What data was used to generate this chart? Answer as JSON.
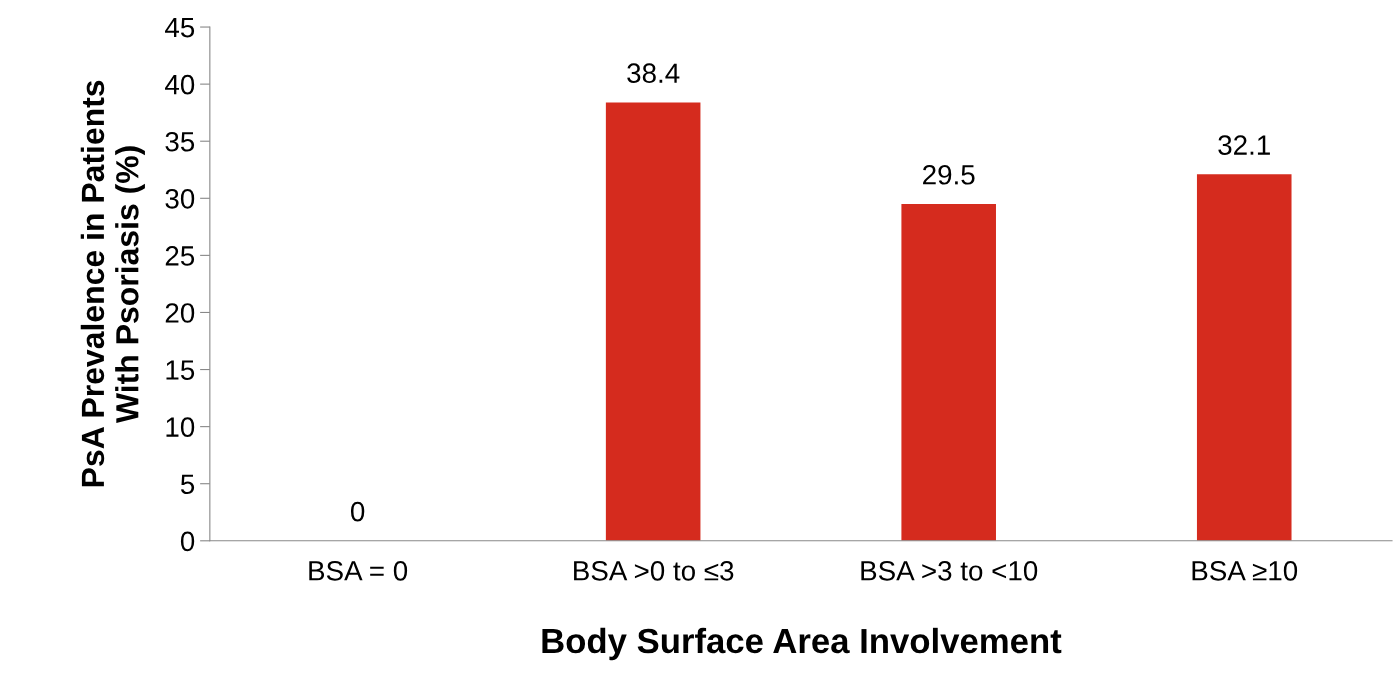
{
  "chart_data": {
    "type": "bar",
    "xlabel": "Body Surface Area Involvement",
    "ylabel": "PsA Prevalence in Patients\nWith Psoriasis (%)",
    "categories": [
      "BSA = 0",
      "BSA >0 to ≤3",
      "BSA >3 to <10",
      "BSA ≥10"
    ],
    "values": [
      0,
      38.4,
      29.5,
      32.1
    ],
    "color": "#d52b1e",
    "ylim": [
      0,
      45
    ],
    "yticks": [
      0,
      5,
      10,
      15,
      20,
      25,
      30,
      35,
      40,
      45
    ],
    "data_labels": true,
    "grid": false,
    "legend": false
  }
}
